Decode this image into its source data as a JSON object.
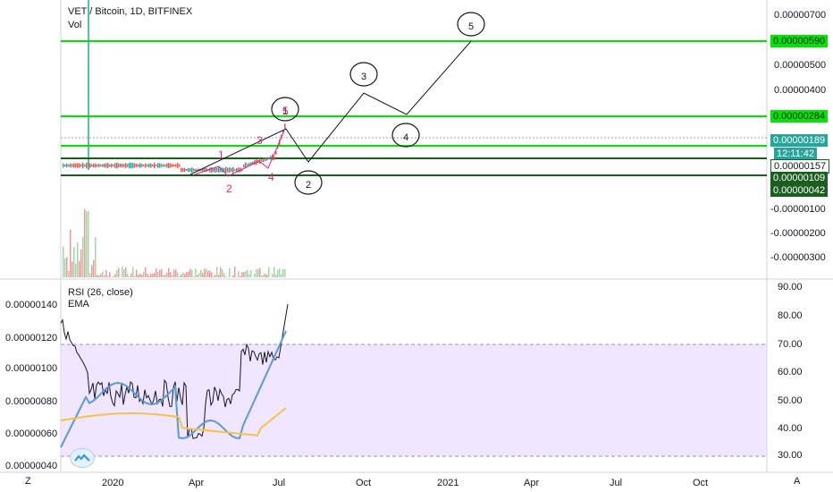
{
  "header": {
    "symbol": "VET / Bitcoin, 1D, BITFINEX",
    "vol_label": "Vol"
  },
  "rsi_panel": {
    "title": "RSI (26, close)",
    "ema_label": "EMA"
  },
  "price_axis": {
    "ticks": [
      "0.00000700",
      "0.00000500",
      "0.00000400",
      "-0.00000100",
      "-0.00000200",
      "-0.00000300"
    ],
    "badges": [
      {
        "text": "0.00000590",
        "bg": "#00e600",
        "color": "#131722"
      },
      {
        "text": "0.00000284",
        "bg": "#00e600",
        "color": "#131722"
      },
      {
        "text": "0.00000189",
        "bg": "#26a69a",
        "color": "#ffffff"
      },
      {
        "text": "12:11:42",
        "bg": "#26a69a",
        "color": "#ffffff"
      },
      {
        "text": "0.00000157",
        "bg": "#ffffff",
        "color": "#131722"
      },
      {
        "text": "0.00000109",
        "bg": "#1b5e20",
        "color": "#ffffff"
      },
      {
        "text": "0.00000042",
        "bg": "#1b5e20",
        "color": "#ffffff"
      }
    ]
  },
  "left_axis": {
    "ticks": [
      "0.00000140",
      "0.00000120",
      "0.00000100",
      "0.00000080",
      "0.00000060",
      "0.00000040"
    ]
  },
  "rsi_axis": {
    "ticks": [
      "90.00",
      "80.00",
      "70.00",
      "60.00",
      "50.00",
      "40.00",
      "30.00"
    ]
  },
  "time_axis": {
    "ticks": [
      "2020",
      "Apr",
      "Jul",
      "Oct",
      "2021",
      "Apr",
      "Jul",
      "Oct"
    ]
  },
  "wave_labels": {
    "big": [
      "1",
      "2",
      "3",
      "4",
      "5"
    ],
    "small": [
      "1",
      "2",
      "3",
      "4",
      "5"
    ]
  },
  "nav": {
    "left": "Z",
    "right": "A"
  },
  "colors": {
    "up": "#26a69a",
    "down": "#ef5350",
    "level": "#00e600",
    "rsi_band": "#e9dcff",
    "rsi": "#131722",
    "ema_fast": "#5b9bd5",
    "ema_slow": "#f6c344",
    "wave_small": "#e91e8c"
  },
  "icons": {
    "logo": "tradingview-cloud-icon"
  }
}
